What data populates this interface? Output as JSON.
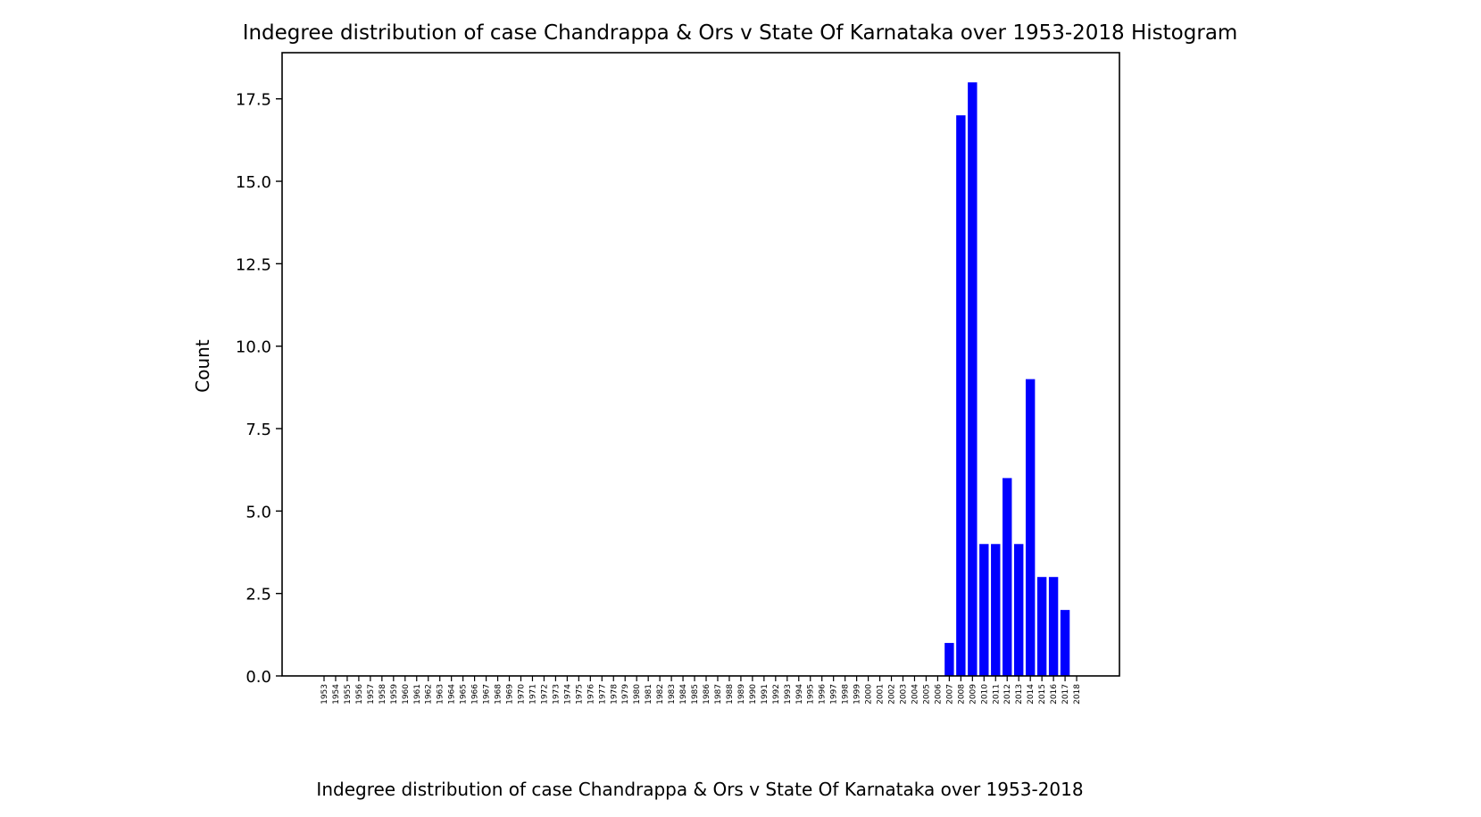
{
  "chart_data": {
    "type": "bar",
    "title": "Indegree distribution of case Chandrappa & Ors v State Of Karnataka over 1953-2018 Histogram",
    "xlabel": "Indegree distribution of case Chandrappa & Ors v State Of Karnataka over 1953-2018",
    "ylabel": "Count",
    "ylim": [
      0,
      18.9
    ],
    "yticks": [
      "0.0",
      "2.5",
      "5.0",
      "7.5",
      "10.0",
      "12.5",
      "15.0",
      "17.5"
    ],
    "categories": [
      "1953",
      "1954",
      "1955",
      "1956",
      "1957",
      "1958",
      "1959",
      "1960",
      "1961",
      "1962",
      "1963",
      "1964",
      "1965",
      "1966",
      "1967",
      "1968",
      "1969",
      "1970",
      "1971",
      "1972",
      "1973",
      "1974",
      "1975",
      "1976",
      "1977",
      "1978",
      "1979",
      "1980",
      "1981",
      "1982",
      "1983",
      "1984",
      "1985",
      "1986",
      "1987",
      "1988",
      "1989",
      "1990",
      "1991",
      "1992",
      "1993",
      "1994",
      "1995",
      "1996",
      "1997",
      "1998",
      "1999",
      "2000",
      "2001",
      "2002",
      "2003",
      "2004",
      "2005",
      "2006",
      "2007",
      "2008",
      "2009",
      "2010",
      "2011",
      "2012",
      "2013",
      "2014",
      "2015",
      "2016",
      "2017",
      "2018"
    ],
    "values": [
      0,
      0,
      0,
      0,
      0,
      0,
      0,
      0,
      0,
      0,
      0,
      0,
      0,
      0,
      0,
      0,
      0,
      0,
      0,
      0,
      0,
      0,
      0,
      0,
      0,
      0,
      0,
      0,
      0,
      0,
      0,
      0,
      0,
      0,
      0,
      0,
      0,
      0,
      0,
      0,
      0,
      0,
      0,
      0,
      0,
      0,
      0,
      0,
      0,
      0,
      0,
      0,
      0,
      0,
      1,
      17,
      18,
      4,
      4,
      6,
      4,
      9,
      3,
      3,
      2,
      0
    ],
    "bar_color": "#0000ff",
    "grid": false
  }
}
